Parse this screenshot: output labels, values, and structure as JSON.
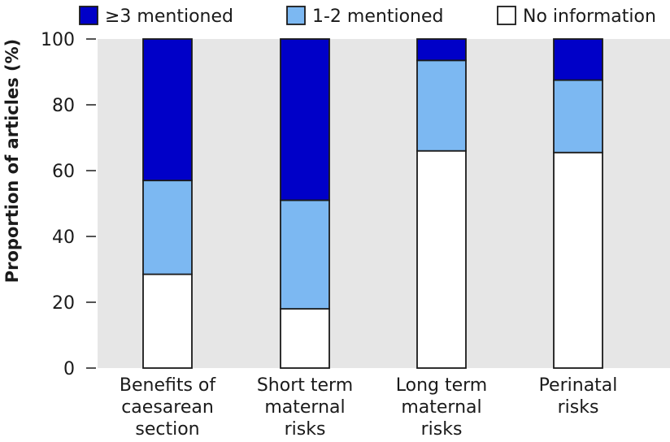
{
  "chart_data": {
    "type": "bar",
    "stacked": true,
    "categories": [
      [
        "Benefits of",
        "caesarean",
        "section"
      ],
      [
        "Short term",
        "maternal",
        "risks"
      ],
      [
        "Long term",
        "maternal",
        "risks"
      ],
      [
        "Perinatal",
        "risks"
      ]
    ],
    "series": [
      {
        "name": "No information",
        "color": "#ffffff",
        "values": [
          28.5,
          18,
          66,
          65.5
        ]
      },
      {
        "name": "1-2 mentioned",
        "color": "#7cb8f2",
        "values": [
          28.5,
          33,
          27.5,
          22
        ]
      },
      {
        "name": "≥3 mentioned",
        "color": "#0000c8",
        "values": [
          43,
          49,
          6.5,
          12.5
        ]
      }
    ],
    "legend_order": [
      "≥3 mentioned",
      "1-2 mentioned",
      "No information"
    ],
    "legend_position": "top",
    "ylabel": "Proportion of articles (%)",
    "xlabel": "",
    "ylim": [
      0,
      100
    ],
    "yticks": [
      0,
      20,
      40,
      60,
      80,
      100
    ],
    "grid": false,
    "background_color": "#e6e6e6"
  }
}
